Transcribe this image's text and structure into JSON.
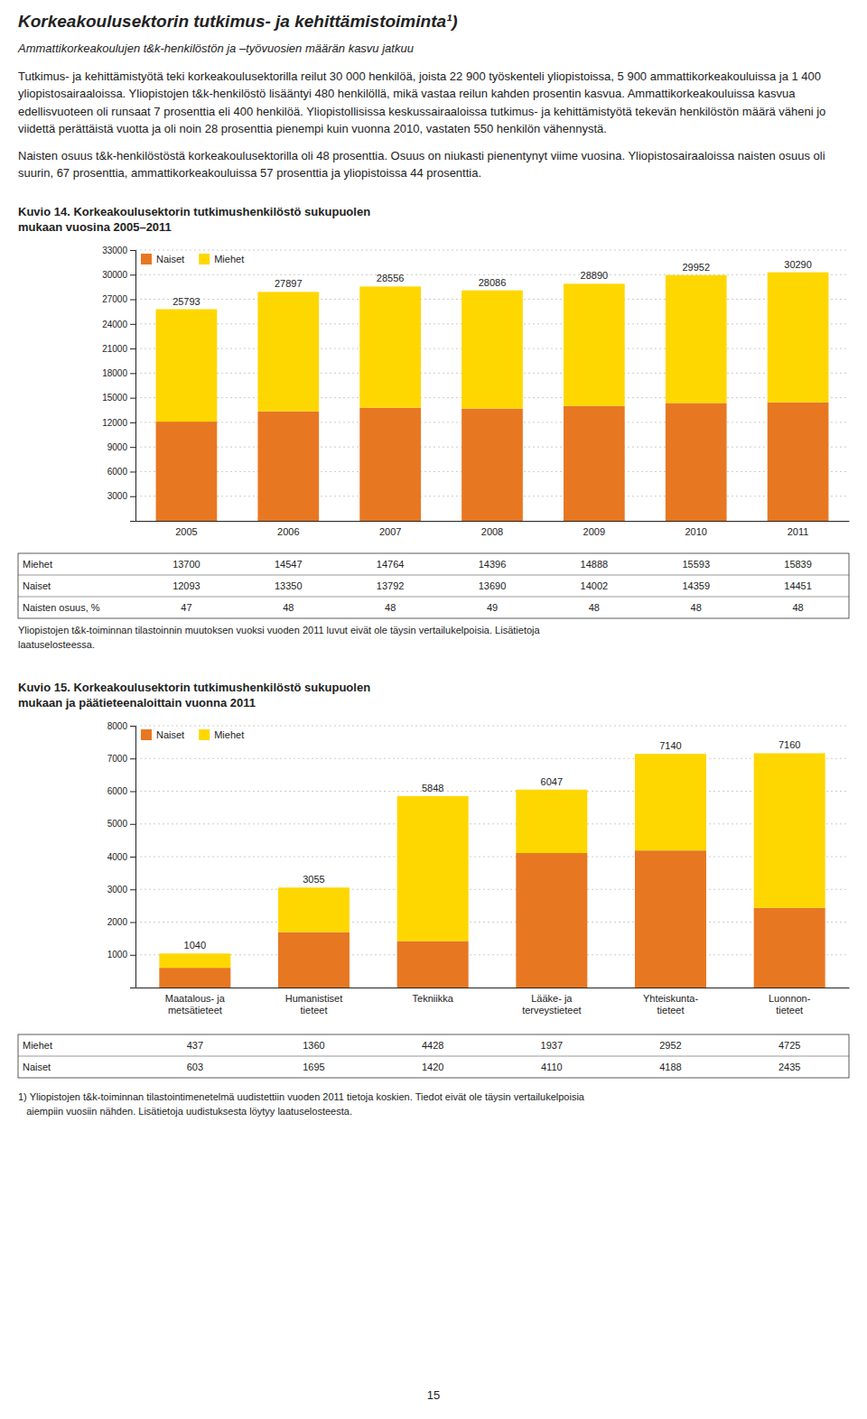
{
  "title": "Korkeakoulusektorin tutkimus- ja kehittämistoiminta¹)",
  "subtitle": "Ammattikorkeakoulujen t&k-henkilöstön ja –työvuosien määrän kasvu jatkuu",
  "paragraphs": [
    "Tutkimus- ja kehittämistyötä teki korkeakoulusektorilla reilut 30 000 henkilöä, joista 22 900 työskenteli yliopistoissa, 5 900 ammattikorkeakouluissa ja 1 400 yliopistosairaaloissa. Yliopistojen t&k-henkilöstö lisääntyi 480 henkilöllä, mikä vastaa reilun kahden prosentin kasvua. Ammattikorkeakouluissa kasvua edellisvuoteen oli runsaat 7 prosenttia eli 400 henkilöä. Yliopistollisissa keskussairaaloissa tutkimus- ja kehittämistyötä tekevän henkilöstön määrä väheni jo viidettä perättäistä vuotta ja oli noin 28 prosenttia pienempi kuin vuonna 2010, vastaten 550 henkilön vähennystä.",
    "Naisten osuus t&k-henkilöstöstä korkeakoulusektorilla oli 48 prosenttia. Osuus on niukasti pienentynyt viime vuosina. Yliopistosairaaloissa naisten osuus oli suurin, 67 prosenttia, ammattikorkeakouluissa 57 prosenttia ja yliopistoissa 44 prosenttia."
  ],
  "chart_data": [
    {
      "type": "bar",
      "stacked": true,
      "title": "Kuvio 14. Korkeakoulusektorin tutkimushenkilöstö sukupuolen\nmukaan vuosina 2005–2011",
      "categories": [
        "2005",
        "2006",
        "2007",
        "2008",
        "2009",
        "2010",
        "2011"
      ],
      "series": [
        {
          "name": "Naiset",
          "color": "#E87722",
          "values": [
            12093,
            13350,
            13792,
            13690,
            14002,
            14359,
            14451
          ]
        },
        {
          "name": "Miehet",
          "color": "#FFD700",
          "values": [
            13700,
            14547,
            14764,
            14396,
            14888,
            15593,
            15839
          ]
        }
      ],
      "totals": [
        25793,
        27897,
        28556,
        28086,
        28890,
        29952,
        30290
      ],
      "share": {
        "name": "Naisten osuus, %",
        "values": [
          47,
          48,
          48,
          49,
          48,
          48,
          48
        ]
      },
      "ylim": [
        0,
        33000
      ],
      "yticks": [
        3000,
        6000,
        9000,
        12000,
        15000,
        18000,
        21000,
        24000,
        27000,
        30000,
        33000
      ],
      "grid": true,
      "legend": "upper left",
      "footnote": "Yliopistojen t&k-toiminnan tilastoinnin muutoksen vuoksi vuoden 2011 luvut eivät ole täysin vertailukelpoisia. Lisätietoja\nlaatuselosteessa."
    },
    {
      "type": "bar",
      "stacked": true,
      "title": "Kuvio 15. Korkeakoulusektorin tutkimushenkilöstö sukupuolen\nmukaan ja päätieteenaloittain vuonna 2011",
      "categories": [
        "Maatalous- ja\nmetsätieteet",
        "Humanistiset\ntieteet",
        "Tekniikka",
        "Lääke- ja\nterveystieteet",
        "Yhteiskunta-\ntieteet",
        "Luonnon-\ntieteet"
      ],
      "series": [
        {
          "name": "Naiset",
          "color": "#E87722",
          "values": [
            603,
            1695,
            1420,
            4110,
            4188,
            2435
          ]
        },
        {
          "name": "Miehet",
          "color": "#FFD700",
          "values": [
            437,
            1360,
            4428,
            1937,
            2952,
            4725
          ]
        }
      ],
      "totals": [
        1040,
        3055,
        5848,
        6047,
        7140,
        7160
      ],
      "ylim": [
        0,
        8000
      ],
      "yticks": [
        1000,
        2000,
        3000,
        4000,
        5000,
        6000,
        7000,
        8000
      ],
      "grid": true,
      "legend": "upper left"
    }
  ],
  "footnote": "1) Yliopistojen t&k-toiminnan tilastointimenetelmä uudistettiin vuoden 2011 tietoja koskien. Tiedot eivät ole täysin vertailukelpoisia\n   aiempiin vuosiin nähden. Lisätietoja uudistuksesta löytyy laatuselosteesta.",
  "page_number": "15"
}
